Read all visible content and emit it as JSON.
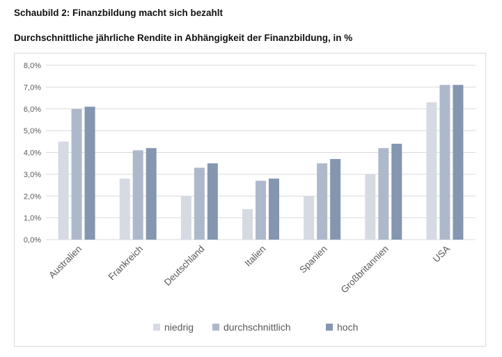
{
  "header": {
    "title": "Schaubild 2: Finanzbildung macht sich bezahlt",
    "subtitle": "Durchschnittliche jährliche Rendite in Abhängigkeit der Finanzbildung, in %"
  },
  "colors": {
    "niedrig": "#d5dae3",
    "durchschnittlich": "#adb9cb",
    "hoch": "#8496b0",
    "grid": "#d9d9d9",
    "axis_text": "#595959"
  },
  "chart_data": {
    "type": "bar",
    "title": "Durchschnittliche jährliche Rendite in Abhängigkeit der Finanzbildung, in %",
    "xlabel": "",
    "ylabel": "",
    "ylim": [
      0,
      8
    ],
    "yticks": [
      "0,0%",
      "1,0%",
      "2,0%",
      "3,0%",
      "4,0%",
      "5,0%",
      "6,0%",
      "7,0%",
      "8,0%"
    ],
    "grid": true,
    "legend_position": "bottom",
    "categories": [
      "Australien",
      "Frankreich",
      "Deutschland",
      "Italien",
      "Spanien",
      "Großbritannien",
      "USA"
    ],
    "series": [
      {
        "name": "niedrig",
        "values": [
          4.5,
          2.8,
          2.0,
          1.4,
          2.0,
          3.0,
          6.3
        ]
      },
      {
        "name": "durchschnittlich",
        "values": [
          6.0,
          4.1,
          3.3,
          2.7,
          3.5,
          4.2,
          7.1
        ]
      },
      {
        "name": "hoch",
        "values": [
          6.1,
          4.2,
          3.5,
          2.8,
          3.7,
          4.4,
          7.1
        ]
      }
    ]
  }
}
